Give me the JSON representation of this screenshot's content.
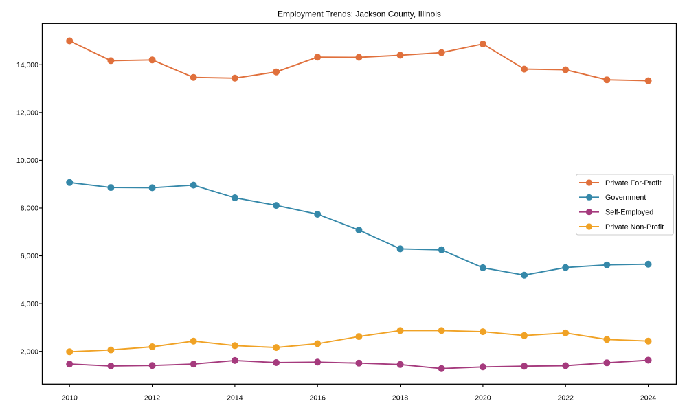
{
  "title": "Employment Trends: Jackson County, Illinois",
  "chart_data": {
    "type": "line",
    "title": "Employment Trends: Jackson County, Illinois",
    "xlabel": "",
    "ylabel": "",
    "x": [
      2010,
      2011,
      2012,
      2013,
      2014,
      2015,
      2016,
      2017,
      2018,
      2019,
      2020,
      2021,
      2022,
      2023,
      2024
    ],
    "series": [
      {
        "name": "Private For-Profit",
        "color": "#E0703C",
        "values": [
          15000,
          14170,
          14200,
          13470,
          13440,
          13700,
          14320,
          14310,
          14400,
          14510,
          14870,
          13820,
          13790,
          13370,
          13330
        ]
      },
      {
        "name": "Government",
        "color": "#3588A9",
        "values": [
          9070,
          8860,
          8850,
          8960,
          8430,
          8110,
          7740,
          7080,
          6290,
          6250,
          5500,
          5190,
          5510,
          5620,
          5650
        ]
      },
      {
        "name": "Self-Employed",
        "color": "#A53A7D",
        "values": [
          1470,
          1390,
          1410,
          1470,
          1620,
          1530,
          1550,
          1510,
          1450,
          1280,
          1350,
          1380,
          1400,
          1520,
          1630
        ]
      },
      {
        "name": "Private Non-Profit",
        "color": "#F0A225",
        "values": [
          1980,
          2060,
          2190,
          2430,
          2240,
          2160,
          2320,
          2620,
          2870,
          2870,
          2820,
          2660,
          2770,
          2500,
          2430
        ]
      }
    ],
    "x_ticks": [
      2010,
      2012,
      2014,
      2016,
      2018,
      2020,
      2022,
      2024
    ],
    "y_ticks": [
      2000,
      4000,
      6000,
      8000,
      10000,
      12000,
      14000
    ],
    "xlim": [
      2009.34,
      2024.68
    ],
    "ylim": [
      630,
      15725
    ],
    "grid": false,
    "legend_position": "right",
    "axis_color": "#000000",
    "legend_border_color": "#cccccc"
  }
}
